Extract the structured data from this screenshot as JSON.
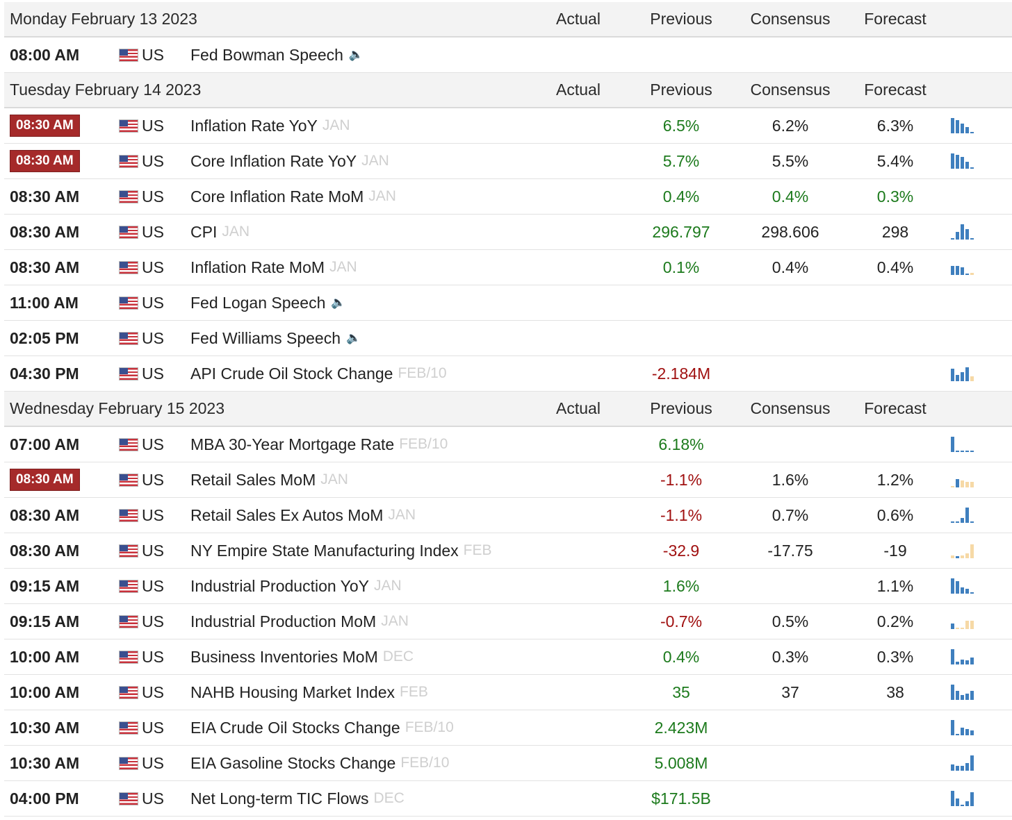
{
  "columns": {
    "actual": "Actual",
    "previous": "Previous",
    "consensus": "Consensus",
    "forecast": "Forecast"
  },
  "days": [
    {
      "date": "Monday February 13 2023",
      "events": [
        {
          "time": "08:00 AM",
          "highlight": false,
          "country": "US",
          "name": "Fed Bowman Speech",
          "ref": "",
          "speech": true,
          "actual": "",
          "previous": "",
          "previous_tone": "neu",
          "consensus": "",
          "consensus_tone": "neu",
          "forecast": "",
          "forecast_tone": "neu",
          "spark": []
        }
      ]
    },
    {
      "date": "Tuesday February 14 2023",
      "events": [
        {
          "time": "08:30 AM",
          "highlight": true,
          "country": "US",
          "name": "Inflation Rate YoY",
          "ref": "JAN",
          "speech": false,
          "actual": "",
          "previous": "6.5%",
          "previous_tone": "pos",
          "consensus": "6.2%",
          "consensus_tone": "neu",
          "forecast": "6.3%",
          "forecast_tone": "neu",
          "spark": [
            [
              "b",
              1.0
            ],
            [
              "b",
              0.85
            ],
            [
              "b",
              0.65
            ],
            [
              "b",
              0.4
            ],
            [
              "b",
              0.1
            ]
          ]
        },
        {
          "time": "08:30 AM",
          "highlight": true,
          "country": "US",
          "name": "Core Inflation Rate YoY",
          "ref": "JAN",
          "speech": false,
          "actual": "",
          "previous": "5.7%",
          "previous_tone": "pos",
          "consensus": "5.5%",
          "consensus_tone": "neu",
          "forecast": "5.4%",
          "forecast_tone": "neu",
          "spark": [
            [
              "b",
              1.0
            ],
            [
              "b",
              0.9
            ],
            [
              "b",
              0.75
            ],
            [
              "b",
              0.45
            ],
            [
              "b",
              0.1
            ]
          ]
        },
        {
          "time": "08:30 AM",
          "highlight": false,
          "country": "US",
          "name": "Core Inflation Rate MoM",
          "ref": "JAN",
          "speech": false,
          "actual": "",
          "previous": "0.4%",
          "previous_tone": "pos",
          "consensus": "0.4%",
          "consensus_tone": "pos",
          "forecast": "0.3%",
          "forecast_tone": "pos",
          "spark": []
        },
        {
          "time": "08:30 AM",
          "highlight": false,
          "country": "US",
          "name": "CPI",
          "ref": "JAN",
          "speech": false,
          "actual": "",
          "previous": "296.797",
          "previous_tone": "pos",
          "consensus": "298.606",
          "consensus_tone": "neu",
          "forecast": "298",
          "forecast_tone": "neu",
          "spark": [
            [
              "b",
              0.1
            ],
            [
              "b",
              0.5
            ],
            [
              "b",
              1.0
            ],
            [
              "b",
              0.7
            ],
            [
              "b",
              0.1
            ]
          ]
        },
        {
          "time": "08:30 AM",
          "highlight": false,
          "country": "US",
          "name": "Inflation Rate MoM",
          "ref": "JAN",
          "speech": false,
          "actual": "",
          "previous": "0.1%",
          "previous_tone": "pos",
          "consensus": "0.4%",
          "consensus_tone": "neu",
          "forecast": "0.4%",
          "forecast_tone": "neu",
          "spark": [
            [
              "b",
              0.6
            ],
            [
              "b",
              0.6
            ],
            [
              "b",
              0.5
            ],
            [
              "b",
              0.1
            ],
            [
              "o",
              0.15
            ]
          ]
        },
        {
          "time": "11:00 AM",
          "highlight": false,
          "country": "US",
          "name": "Fed Logan Speech",
          "ref": "",
          "speech": true,
          "actual": "",
          "previous": "",
          "previous_tone": "neu",
          "consensus": "",
          "consensus_tone": "neu",
          "forecast": "",
          "forecast_tone": "neu",
          "spark": []
        },
        {
          "time": "02:05 PM",
          "highlight": false,
          "country": "US",
          "name": "Fed Williams Speech",
          "ref": "",
          "speech": true,
          "actual": "",
          "previous": "",
          "previous_tone": "neu",
          "consensus": "",
          "consensus_tone": "neu",
          "forecast": "",
          "forecast_tone": "neu",
          "spark": []
        },
        {
          "time": "04:30 PM",
          "highlight": false,
          "country": "US",
          "name": "API Crude Oil Stock Change",
          "ref": "FEB/10",
          "speech": false,
          "actual": "",
          "previous": "-2.184M",
          "previous_tone": "neg",
          "consensus": "",
          "consensus_tone": "neu",
          "forecast": "",
          "forecast_tone": "neu",
          "spark": [
            [
              "b",
              0.8
            ],
            [
              "b",
              0.4
            ],
            [
              "b",
              0.6
            ],
            [
              "b",
              0.9
            ],
            [
              "o",
              0.3
            ]
          ]
        }
      ]
    },
    {
      "date": "Wednesday February 15 2023",
      "events": [
        {
          "time": "07:00 AM",
          "highlight": false,
          "country": "US",
          "name": "MBA 30-Year Mortgage Rate",
          "ref": "FEB/10",
          "speech": false,
          "actual": "",
          "previous": "6.18%",
          "previous_tone": "pos",
          "consensus": "",
          "consensus_tone": "neu",
          "forecast": "",
          "forecast_tone": "neu",
          "spark": [
            [
              "b",
              1.0
            ],
            [
              "b",
              0.1
            ],
            [
              "b",
              0.1
            ],
            [
              "b",
              0.1
            ],
            [
              "b",
              0.1
            ]
          ]
        },
        {
          "time": "08:30 AM",
          "highlight": true,
          "country": "US",
          "name": "Retail Sales MoM",
          "ref": "JAN",
          "speech": false,
          "actual": "",
          "previous": "-1.1%",
          "previous_tone": "neg",
          "consensus": "1.6%",
          "consensus_tone": "neu",
          "forecast": "1.2%",
          "forecast_tone": "neu",
          "spark": [
            [
              "o",
              0.1
            ],
            [
              "b",
              0.55
            ],
            [
              "o",
              0.45
            ],
            [
              "o",
              0.35
            ],
            [
              "o",
              0.35
            ]
          ]
        },
        {
          "time": "08:30 AM",
          "highlight": false,
          "country": "US",
          "name": "Retail Sales Ex Autos MoM",
          "ref": "JAN",
          "speech": false,
          "actual": "",
          "previous": "-1.1%",
          "previous_tone": "neg",
          "consensus": "0.7%",
          "consensus_tone": "neu",
          "forecast": "0.6%",
          "forecast_tone": "neu",
          "spark": [
            [
              "b",
              0.1
            ],
            [
              "b",
              0.1
            ],
            [
              "b",
              0.3
            ],
            [
              "b",
              1.0
            ],
            [
              "b",
              0.1
            ]
          ]
        },
        {
          "time": "08:30 AM",
          "highlight": false,
          "country": "US",
          "name": "NY Empire State Manufacturing Index",
          "ref": "FEB",
          "speech": false,
          "actual": "",
          "previous": "-32.9",
          "previous_tone": "neg",
          "consensus": "-17.75",
          "consensus_tone": "neu",
          "forecast": "-19",
          "forecast_tone": "neu",
          "spark": [
            [
              "o",
              0.2
            ],
            [
              "b",
              0.15
            ],
            [
              "o",
              0.2
            ],
            [
              "o",
              0.3
            ],
            [
              "o",
              0.9
            ]
          ]
        },
        {
          "time": "09:15 AM",
          "highlight": false,
          "country": "US",
          "name": "Industrial Production YoY",
          "ref": "JAN",
          "speech": false,
          "actual": "",
          "previous": "1.6%",
          "previous_tone": "pos",
          "consensus": "",
          "consensus_tone": "neu",
          "forecast": "1.1%",
          "forecast_tone": "neu",
          "spark": [
            [
              "b",
              1.0
            ],
            [
              "b",
              0.8
            ],
            [
              "b",
              0.4
            ],
            [
              "b",
              0.3
            ],
            [
              "b",
              0.1
            ]
          ]
        },
        {
          "time": "09:15 AM",
          "highlight": false,
          "country": "US",
          "name": "Industrial Production MoM",
          "ref": "JAN",
          "speech": false,
          "actual": "",
          "previous": "-0.7%",
          "previous_tone": "neg",
          "consensus": "0.5%",
          "consensus_tone": "neu",
          "forecast": "0.2%",
          "forecast_tone": "neu",
          "spark": [
            [
              "b",
              0.35
            ],
            [
              "o",
              0.0
            ],
            [
              "o",
              0.0
            ],
            [
              "o",
              0.55
            ],
            [
              "o",
              0.55
            ]
          ]
        },
        {
          "time": "10:00 AM",
          "highlight": false,
          "country": "US",
          "name": "Business Inventories MoM",
          "ref": "DEC",
          "speech": false,
          "actual": "",
          "previous": "0.4%",
          "previous_tone": "pos",
          "consensus": "0.3%",
          "consensus_tone": "neu",
          "forecast": "0.3%",
          "forecast_tone": "neu",
          "spark": [
            [
              "b",
              1.0
            ],
            [
              "b",
              0.2
            ],
            [
              "b",
              0.3
            ],
            [
              "b",
              0.25
            ],
            [
              "b",
              0.45
            ]
          ]
        },
        {
          "time": "10:00 AM",
          "highlight": false,
          "country": "US",
          "name": "NAHB Housing Market Index",
          "ref": "FEB",
          "speech": false,
          "actual": "",
          "previous": "35",
          "previous_tone": "pos",
          "consensus": "37",
          "consensus_tone": "neu",
          "forecast": "38",
          "forecast_tone": "neu",
          "spark": [
            [
              "b",
              1.0
            ],
            [
              "b",
              0.6
            ],
            [
              "b",
              0.3
            ],
            [
              "b",
              0.4
            ],
            [
              "b",
              0.6
            ]
          ]
        },
        {
          "time": "10:30 AM",
          "highlight": false,
          "country": "US",
          "name": "EIA Crude Oil Stocks Change",
          "ref": "FEB/10",
          "speech": false,
          "actual": "",
          "previous": "2.423M",
          "previous_tone": "pos",
          "consensus": "",
          "consensus_tone": "neu",
          "forecast": "",
          "forecast_tone": "neu",
          "spark": [
            [
              "b",
              1.0
            ],
            [
              "b",
              0.1
            ],
            [
              "b",
              0.5
            ],
            [
              "b",
              0.4
            ],
            [
              "b",
              0.3
            ]
          ]
        },
        {
          "time": "10:30 AM",
          "highlight": false,
          "country": "US",
          "name": "EIA Gasoline Stocks Change",
          "ref": "FEB/10",
          "speech": false,
          "actual": "",
          "previous": "5.008M",
          "previous_tone": "pos",
          "consensus": "",
          "consensus_tone": "neu",
          "forecast": "",
          "forecast_tone": "neu",
          "spark": [
            [
              "b",
              0.4
            ],
            [
              "b",
              0.3
            ],
            [
              "b",
              0.3
            ],
            [
              "b",
              0.5
            ],
            [
              "b",
              1.0
            ]
          ]
        },
        {
          "time": "04:00 PM",
          "highlight": false,
          "country": "US",
          "name": "Net Long-term TIC Flows",
          "ref": "DEC",
          "speech": false,
          "actual": "",
          "previous": "$171.5B",
          "previous_tone": "pos",
          "consensus": "",
          "consensus_tone": "neu",
          "forecast": "",
          "forecast_tone": "neu",
          "spark": [
            [
              "b",
              1.0
            ],
            [
              "b",
              0.5
            ],
            [
              "b",
              0.1
            ],
            [
              "b",
              0.3
            ],
            [
              "b",
              0.9
            ]
          ]
        }
      ]
    }
  ]
}
